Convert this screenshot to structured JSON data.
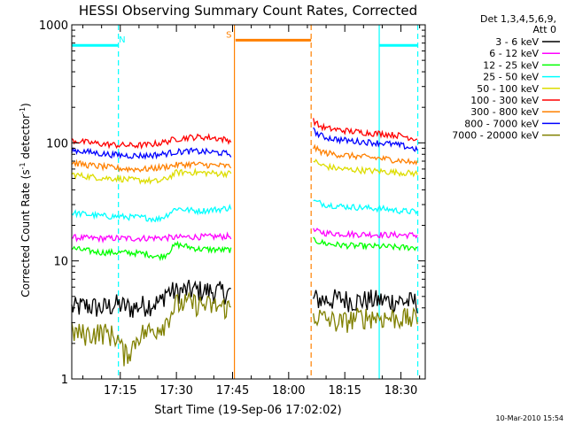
{
  "chart_data": {
    "type": "line",
    "title": "HESSI Observing Summary Count Rates, Corrected",
    "xlabel": "Start Time (19-Sep-06 17:02:02)",
    "ylabel_main": "Corrected Count Rate (s",
    "ylabel_sup1": "-1",
    "ylabel_mid": " detector",
    "ylabel_sup2": "-1",
    "ylabel_end": ")",
    "yscale": "log",
    "ylim": [
      1,
      1000
    ],
    "xlim_minutes": [
      1022.03,
      1116.5
    ],
    "y_ticks": [
      {
        "value": 1,
        "label": "1"
      },
      {
        "value": 10,
        "label": "10"
      },
      {
        "value": 100,
        "label": "100"
      },
      {
        "value": 1000,
        "label": "1000"
      }
    ],
    "x_ticks": [
      {
        "value": 1035,
        "label": "17:15"
      },
      {
        "value": 1050,
        "label": "17:30"
      },
      {
        "value": 1065,
        "label": "17:45"
      },
      {
        "value": 1080,
        "label": "18:00"
      },
      {
        "value": 1095,
        "label": "18:15"
      },
      {
        "value": 1110,
        "label": "18:30"
      }
    ],
    "legend_title": [
      "Det 1,3,4,5,6,9,",
      "Att 0"
    ],
    "legend_location": "right, outside plot",
    "timestamp": "10-Mar-2010 15:54",
    "gap_minutes": [
      1065.2,
      1086.5
    ],
    "series": [
      {
        "name": "3 - 6 keV",
        "color": "#000000",
        "points": [
          [
            1022.0,
            4.0
          ],
          [
            1026,
            4.2
          ],
          [
            1030,
            4.0
          ],
          [
            1034,
            4.3
          ],
          [
            1038,
            4.0
          ],
          [
            1042,
            4.3
          ],
          [
            1046,
            4.5
          ],
          [
            1047,
            5.5
          ],
          [
            1050,
            5.5
          ],
          [
            1054,
            5.7
          ],
          [
            1058,
            5.6
          ],
          [
            1062,
            5.5
          ],
          [
            1064.9,
            5.4
          ],
          [
            1086.6,
            4.8
          ],
          [
            1090,
            4.7
          ],
          [
            1094,
            4.8
          ],
          [
            1098,
            4.6
          ],
          [
            1102,
            4.7
          ],
          [
            1106,
            4.6
          ],
          [
            1110,
            4.6
          ],
          [
            1112,
            4.5
          ],
          [
            1114.4,
            4.5
          ]
        ]
      },
      {
        "name": "6 - 12 keV",
        "color": "#ff00ff",
        "points": [
          [
            1022.0,
            15.8
          ],
          [
            1026,
            15.6
          ],
          [
            1030,
            15.5
          ],
          [
            1034,
            15.6
          ],
          [
            1038,
            15.5
          ],
          [
            1042,
            15.6
          ],
          [
            1046,
            15.7
          ],
          [
            1050,
            15.8
          ],
          [
            1054,
            16.0
          ],
          [
            1058,
            16.0
          ],
          [
            1062,
            16.1
          ],
          [
            1064.9,
            16.2
          ],
          [
            1086.6,
            18.0
          ],
          [
            1090,
            17.2
          ],
          [
            1094,
            17.0
          ],
          [
            1098,
            16.8
          ],
          [
            1102,
            16.8
          ],
          [
            1106,
            16.6
          ],
          [
            1110,
            16.6
          ],
          [
            1114.4,
            16.5
          ]
        ]
      },
      {
        "name": "12 - 25 keV",
        "color": "#00ff00",
        "points": [
          [
            1022.0,
            12.8
          ],
          [
            1026,
            12.2
          ],
          [
            1030,
            11.8
          ],
          [
            1034,
            11.8
          ],
          [
            1038,
            11.7
          ],
          [
            1042,
            11.5
          ],
          [
            1045,
            10.8
          ],
          [
            1047,
            11.2
          ],
          [
            1050,
            13.8
          ],
          [
            1053,
            13.2
          ],
          [
            1056,
            12.6
          ],
          [
            1059,
            12.5
          ],
          [
            1062,
            12.4
          ],
          [
            1064.9,
            12.4
          ],
          [
            1086.6,
            15.0
          ],
          [
            1090,
            14.0
          ],
          [
            1094,
            13.6
          ],
          [
            1098,
            13.4
          ],
          [
            1102,
            13.3
          ],
          [
            1106,
            13.2
          ],
          [
            1110,
            13.0
          ],
          [
            1114.4,
            13.0
          ]
        ]
      },
      {
        "name": "25 - 50 keV",
        "color": "#00ffff",
        "points": [
          [
            1022.0,
            25.5
          ],
          [
            1026,
            24.8
          ],
          [
            1030,
            24.0
          ],
          [
            1034,
            23.8
          ],
          [
            1038,
            23.5
          ],
          [
            1042,
            23.2
          ],
          [
            1045,
            22.5
          ],
          [
            1047,
            24.0
          ],
          [
            1050,
            28.0
          ],
          [
            1053,
            27.0
          ],
          [
            1056,
            26.5
          ],
          [
            1059,
            27.0
          ],
          [
            1062,
            27.5
          ],
          [
            1064.9,
            28.5
          ],
          [
            1086.6,
            32.0
          ],
          [
            1090,
            30.0
          ],
          [
            1094,
            29.0
          ],
          [
            1098,
            28.5
          ],
          [
            1102,
            28.0
          ],
          [
            1106,
            27.5
          ],
          [
            1110,
            26.5
          ],
          [
            1114.4,
            26.0
          ]
        ]
      },
      {
        "name": "50 - 100 keV",
        "color": "#dddd00",
        "points": [
          [
            1022.0,
            54.0
          ],
          [
            1026,
            52.0
          ],
          [
            1030,
            50.5
          ],
          [
            1034,
            50.0
          ],
          [
            1038,
            48.5
          ],
          [
            1042,
            48.0
          ],
          [
            1045,
            47.0
          ],
          [
            1047,
            49.0
          ],
          [
            1050,
            56.0
          ],
          [
            1053,
            56.5
          ],
          [
            1056,
            56.0
          ],
          [
            1059,
            55.5
          ],
          [
            1062,
            55.0
          ],
          [
            1064.9,
            55.0
          ],
          [
            1086.6,
            72.0
          ],
          [
            1088,
            66.0
          ],
          [
            1090,
            63.0
          ],
          [
            1094,
            60.0
          ],
          [
            1098,
            59.0
          ],
          [
            1102,
            58.0
          ],
          [
            1106,
            57.0
          ],
          [
            1110,
            56.0
          ],
          [
            1114.4,
            55.0
          ]
        ]
      },
      {
        "name": "100 - 300 keV",
        "color": "#ff0000",
        "points": [
          [
            1022.0,
            105
          ],
          [
            1026,
            101
          ],
          [
            1030,
            98
          ],
          [
            1034,
            96
          ],
          [
            1038,
            95
          ],
          [
            1042,
            96
          ],
          [
            1046,
            100
          ],
          [
            1050,
            108
          ],
          [
            1053,
            111
          ],
          [
            1056,
            112
          ],
          [
            1059,
            111
          ],
          [
            1062,
            108
          ],
          [
            1064.9,
            104
          ],
          [
            1086.6,
            155
          ],
          [
            1088,
            140
          ],
          [
            1090,
            133
          ],
          [
            1094,
            128
          ],
          [
            1098,
            124
          ],
          [
            1102,
            121
          ],
          [
            1106,
            119
          ],
          [
            1110,
            115
          ],
          [
            1114.4,
            108
          ]
        ]
      },
      {
        "name": "300 - 800 keV",
        "color": "#ff8000",
        "points": [
          [
            1022.0,
            68
          ],
          [
            1026,
            65
          ],
          [
            1030,
            63
          ],
          [
            1034,
            61
          ],
          [
            1038,
            60
          ],
          [
            1042,
            60
          ],
          [
            1046,
            62
          ],
          [
            1050,
            65
          ],
          [
            1054,
            66
          ],
          [
            1058,
            65
          ],
          [
            1062,
            64
          ],
          [
            1064.9,
            63
          ],
          [
            1086.6,
            92
          ],
          [
            1088,
            86
          ],
          [
            1090,
            82
          ],
          [
            1094,
            79
          ],
          [
            1098,
            77
          ],
          [
            1102,
            75
          ],
          [
            1106,
            73
          ],
          [
            1110,
            71
          ],
          [
            1114.4,
            67
          ]
        ]
      },
      {
        "name": "800 - 7000 keV",
        "color": "#0000ff",
        "points": [
          [
            1022.0,
            87
          ],
          [
            1026,
            84
          ],
          [
            1030,
            81
          ],
          [
            1034,
            79
          ],
          [
            1038,
            78
          ],
          [
            1042,
            78
          ],
          [
            1046,
            80
          ],
          [
            1050,
            84
          ],
          [
            1054,
            85
          ],
          [
            1058,
            84
          ],
          [
            1062,
            82
          ],
          [
            1064.9,
            80
          ],
          [
            1086.6,
            128
          ],
          [
            1088,
            117
          ],
          [
            1090,
            111
          ],
          [
            1094,
            106
          ],
          [
            1098,
            103
          ],
          [
            1102,
            101
          ],
          [
            1106,
            99
          ],
          [
            1110,
            95
          ],
          [
            1114.4,
            88
          ]
        ]
      },
      {
        "name": "7000 - 20000 keV",
        "color": "#808000",
        "points": [
          [
            1022.0,
            2.5
          ],
          [
            1026,
            2.4
          ],
          [
            1030,
            2.5
          ],
          [
            1034,
            2.3
          ],
          [
            1036,
            1.6
          ],
          [
            1038,
            1.8
          ],
          [
            1040,
            2.4
          ],
          [
            1044,
            2.6
          ],
          [
            1047,
            3.0
          ],
          [
            1050,
            4.3
          ],
          [
            1054,
            4.4
          ],
          [
            1058,
            4.2
          ],
          [
            1062,
            4.1
          ],
          [
            1064.9,
            4.0
          ],
          [
            1086.6,
            3.5
          ],
          [
            1090,
            3.2
          ],
          [
            1094,
            3.0
          ],
          [
            1098,
            3.3
          ],
          [
            1102,
            3.4
          ],
          [
            1106,
            3.3
          ],
          [
            1110,
            3.3
          ],
          [
            1114.4,
            3.2
          ]
        ]
      }
    ],
    "markers": [
      {
        "label": "N",
        "color": "#00ffff",
        "y_value": 670,
        "segments": [
          [
            1022.03,
            1034.5
          ],
          [
            1104.2,
            1114.5
          ]
        ],
        "boundaries": [
          {
            "value": 1034.5,
            "style": "dashed"
          },
          {
            "value": 1104.2,
            "style": "solid"
          },
          {
            "value": 1114.5,
            "style": "dashed"
          }
        ],
        "label_value": 1035.5
      },
      {
        "label": "S",
        "color": "#ff8000",
        "y_value": 740,
        "segments": [
          [
            1065.8,
            1086.0
          ]
        ],
        "boundaries": [
          {
            "value": 1065.5,
            "style": "solid"
          },
          {
            "value": 1086.0,
            "style": "dashed"
          }
        ],
        "label_value": 1064.0
      }
    ]
  }
}
